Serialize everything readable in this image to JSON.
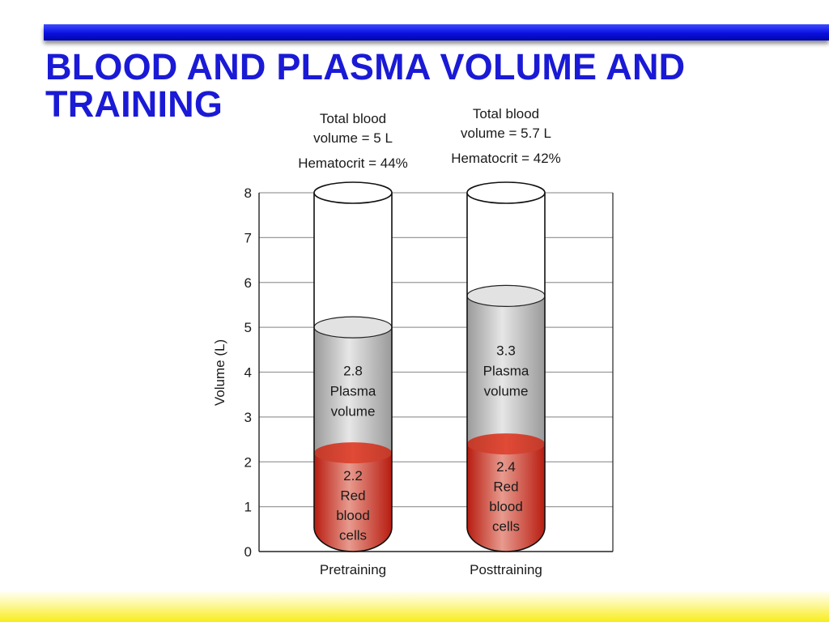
{
  "slide": {
    "title": "BLOOD AND PLASMA VOLUME AND TRAINING"
  },
  "chart_data": {
    "type": "bar",
    "ylabel": "Volume (L)",
    "ylim": [
      0,
      8
    ],
    "yticks": [
      0,
      1,
      2,
      3,
      4,
      5,
      6,
      7,
      8
    ],
    "grid": true,
    "categories": [
      "Pretraining",
      "Posttraining"
    ],
    "series": [
      {
        "name": "Red blood cells",
        "values": [
          2.2,
          2.4
        ],
        "color": "#c62a1e"
      },
      {
        "name": "Plasma volume",
        "values": [
          2.8,
          3.3
        ],
        "color": "#c9c9c9"
      }
    ],
    "tubes": [
      {
        "category": "Pretraining",
        "header": [
          "Total blood",
          "volume = 5 L",
          "Hematocrit = 44%"
        ],
        "plasma_label": [
          "2.8",
          "Plasma",
          "volume"
        ],
        "rbc_label": [
          "2.2",
          "Red",
          "blood",
          "cells"
        ]
      },
      {
        "category": "Posttraining",
        "header": [
          "Total blood",
          "volume = 5.7 L",
          "Hematocrit = 42%"
        ],
        "plasma_label": [
          "3.3",
          "Plasma",
          "volume"
        ],
        "rbc_label": [
          "2.4",
          "Red",
          "blood",
          "cells"
        ]
      }
    ]
  }
}
